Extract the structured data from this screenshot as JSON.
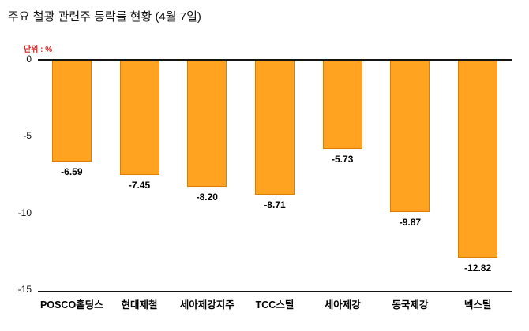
{
  "title": "주요 철광 관련주 등락률 현황 (4월 7일)",
  "unit_label": "단위 : %",
  "chart_data": {
    "type": "bar",
    "title": "주요 철광 관련주 등락률 현황 (4월 7일)",
    "unit": "%",
    "categories": [
      "POSCO홀딩스",
      "현대제철",
      "세아제강지주",
      "TCC스틸",
      "세아제강",
      "동국제강",
      "넥스틸"
    ],
    "values": [
      -6.59,
      -7.45,
      -8.2,
      -8.71,
      -5.73,
      -9.87,
      -12.82
    ],
    "value_labels": [
      "-6.59",
      "-7.45",
      "-8.20",
      "-8.71",
      "-5.73",
      "-9.87",
      "-12.82"
    ],
    "ylim": [
      -15,
      0
    ],
    "yticks": [
      0,
      -5,
      -10,
      -15
    ],
    "grid": false,
    "legend": false,
    "bar_fill": "#FFA321",
    "bar_border": "#E07C00",
    "unit_color": "#E02020",
    "axis_color": "#151515"
  }
}
